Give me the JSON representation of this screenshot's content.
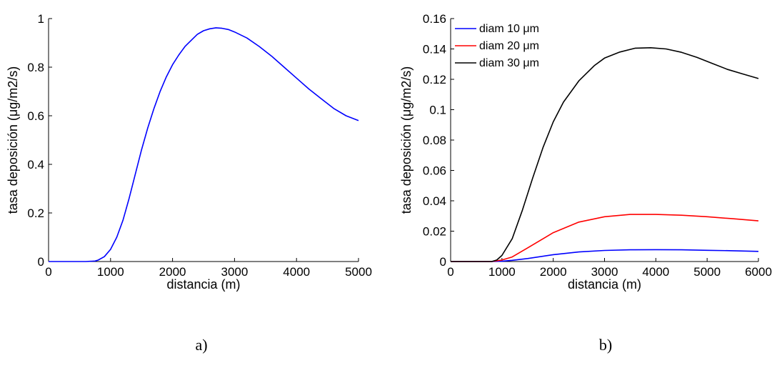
{
  "chart_data": [
    {
      "type": "line",
      "panel_caption": "a)",
      "xlabel": "distancia (m)",
      "ylabel": "tasa deposición (μg/m2/s)",
      "xlim": [
        0,
        5000
      ],
      "ylim": [
        0,
        1
      ],
      "xticks": [
        0,
        1000,
        2000,
        3000,
        4000,
        5000
      ],
      "yticks": [
        0,
        0.2,
        0.4,
        0.6,
        0.8,
        1
      ],
      "grid": false,
      "series": [
        {
          "color": "#0000ff",
          "x": [
            0,
            600,
            750,
            800,
            900,
            1000,
            1100,
            1200,
            1300,
            1400,
            1500,
            1600,
            1700,
            1800,
            1900,
            2000,
            2100,
            2200,
            2300,
            2400,
            2500,
            2600,
            2700,
            2800,
            2900,
            3000,
            3200,
            3400,
            3600,
            3800,
            4000,
            4200,
            4400,
            4600,
            4800,
            5000
          ],
          "y": [
            0,
            0,
            0.002,
            0.006,
            0.02,
            0.05,
            0.1,
            0.17,
            0.26,
            0.36,
            0.46,
            0.55,
            0.63,
            0.7,
            0.76,
            0.81,
            0.85,
            0.885,
            0.91,
            0.935,
            0.95,
            0.958,
            0.962,
            0.96,
            0.955,
            0.945,
            0.92,
            0.885,
            0.845,
            0.8,
            0.755,
            0.71,
            0.67,
            0.63,
            0.6,
            0.58
          ]
        }
      ]
    },
    {
      "type": "line",
      "panel_caption": "b)",
      "xlabel": "distancia (m)",
      "ylabel": "tasa deposición (μg/m2/s)",
      "xlim": [
        0,
        6000
      ],
      "ylim": [
        0,
        0.16
      ],
      "xticks": [
        0,
        1000,
        2000,
        3000,
        4000,
        5000,
        6000
      ],
      "yticks": [
        0,
        0.02,
        0.04,
        0.06,
        0.08,
        0.1,
        0.12,
        0.14,
        0.16
      ],
      "ytick_labels": [
        "0",
        "0.02",
        "0.04",
        "0.06",
        "0.08",
        "0.1",
        "0.12",
        "0.14",
        "0.16"
      ],
      "grid": false,
      "legend_position": "top-left",
      "series": [
        {
          "name": "diam 10 μm",
          "color": "#0000ff",
          "x": [
            0,
            800,
            1000,
            1200,
            1500,
            2000,
            2500,
            3000,
            3500,
            4000,
            4500,
            5000,
            5500,
            6000
          ],
          "y": [
            0,
            0,
            0.0002,
            0.0008,
            0.002,
            0.0045,
            0.0063,
            0.0073,
            0.0077,
            0.0078,
            0.0077,
            0.0074,
            0.0071,
            0.0067
          ]
        },
        {
          "name": "diam 20 μm",
          "color": "#ff0000",
          "x": [
            0,
            800,
            1000,
            1200,
            1500,
            2000,
            2500,
            3000,
            3500,
            4000,
            4500,
            5000,
            5500,
            6000
          ],
          "y": [
            0,
            0,
            0.001,
            0.003,
            0.009,
            0.019,
            0.026,
            0.0295,
            0.031,
            0.031,
            0.0305,
            0.0295,
            0.0282,
            0.0268
          ]
        },
        {
          "name": "diam 30 μm",
          "color": "#000000",
          "x": [
            0,
            800,
            900,
            1000,
            1200,
            1400,
            1600,
            1800,
            2000,
            2200,
            2500,
            2800,
            3000,
            3300,
            3600,
            3900,
            4200,
            4500,
            4800,
            5100,
            5400,
            5700,
            6000
          ],
          "y": [
            0,
            0,
            0.001,
            0.004,
            0.015,
            0.034,
            0.055,
            0.075,
            0.092,
            0.105,
            0.119,
            0.129,
            0.134,
            0.138,
            0.1405,
            0.1408,
            0.14,
            0.1378,
            0.1345,
            0.1305,
            0.1265,
            0.1235,
            0.1205
          ]
        }
      ]
    }
  ]
}
